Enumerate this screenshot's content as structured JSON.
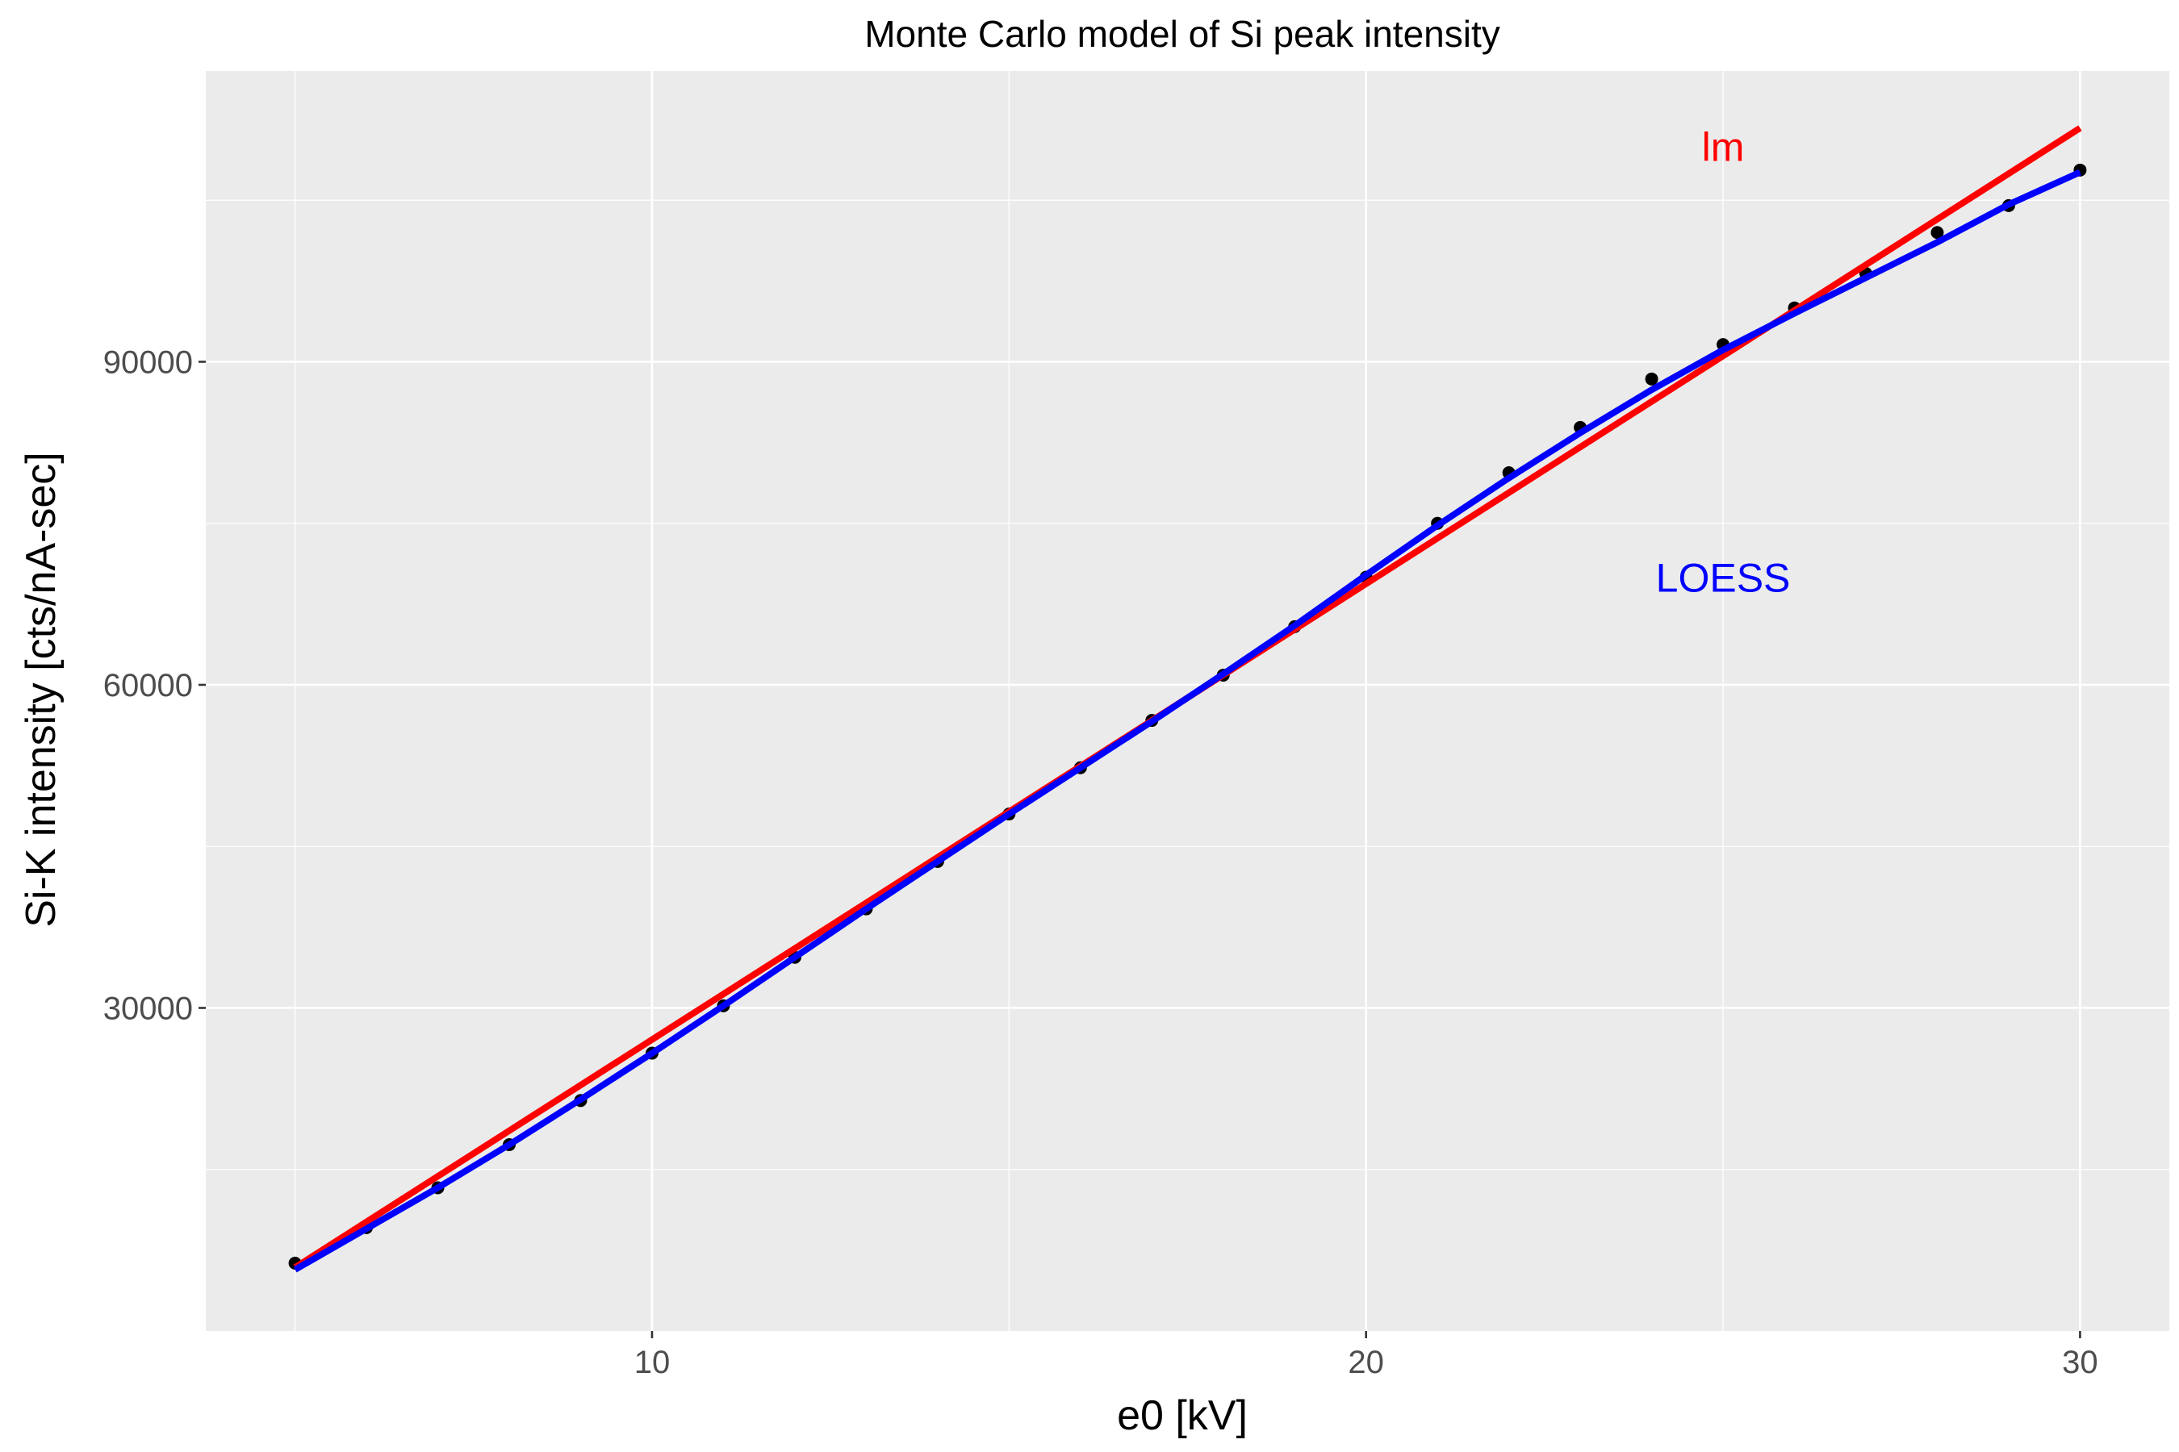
{
  "chart_data": {
    "type": "scatter",
    "title": "Monte Carlo model of Si peak intensity",
    "xlabel": "e0 [kV]",
    "ylabel": "Si-K intensity [cts/nA-sec]",
    "xlim": [
      3.75,
      31.25
    ],
    "ylim": [
      0,
      117000
    ],
    "x_ticks": [
      10,
      20,
      30
    ],
    "x_tick_labels": [
      "10",
      "20",
      "30"
    ],
    "y_ticks": [
      30000,
      60000,
      90000
    ],
    "y_tick_labels": [
      "30000",
      "60000",
      "90000"
    ],
    "grid": true,
    "background": "#ebebeb",
    "points": {
      "x": [
        5,
        6,
        7,
        8,
        9,
        10,
        11,
        12,
        13,
        14,
        15,
        16,
        17,
        18,
        19,
        20,
        21,
        22,
        23,
        24,
        25,
        26,
        27,
        28,
        29,
        30
      ],
      "y": [
        6300,
        9600,
        13300,
        17300,
        21400,
        25800,
        30200,
        34700,
        39200,
        43600,
        48000,
        52300,
        56700,
        60900,
        65400,
        70000,
        75000,
        79700,
        83900,
        88400,
        91600,
        95000,
        98200,
        102000,
        104500,
        107800
      ],
      "color": "#000000"
    },
    "series": [
      {
        "name": "lm",
        "color": "#ff0000",
        "x": [
          5,
          30
        ],
        "y": [
          5900,
          111700
        ]
      },
      {
        "name": "LOESS",
        "color": "#0000ff",
        "x": [
          5,
          6,
          7,
          8,
          9,
          10,
          11,
          12,
          13,
          14,
          15,
          16,
          17,
          18,
          19,
          20,
          21,
          22,
          23,
          24,
          25,
          26,
          27,
          28,
          29,
          30
        ],
        "y": [
          5700,
          9500,
          13300,
          17300,
          21500,
          25800,
          30200,
          34700,
          39200,
          43600,
          48000,
          52300,
          56600,
          61000,
          65500,
          70200,
          74800,
          79200,
          83400,
          87400,
          91100,
          94500,
          97800,
          101100,
          104600,
          107600
        ]
      }
    ],
    "annotations": [
      {
        "text": "lm",
        "x": 25,
        "y": 110000,
        "color": "#ff0000"
      },
      {
        "text": "LOESS",
        "x": 25,
        "y": 70000,
        "color": "#0000ff"
      }
    ]
  }
}
